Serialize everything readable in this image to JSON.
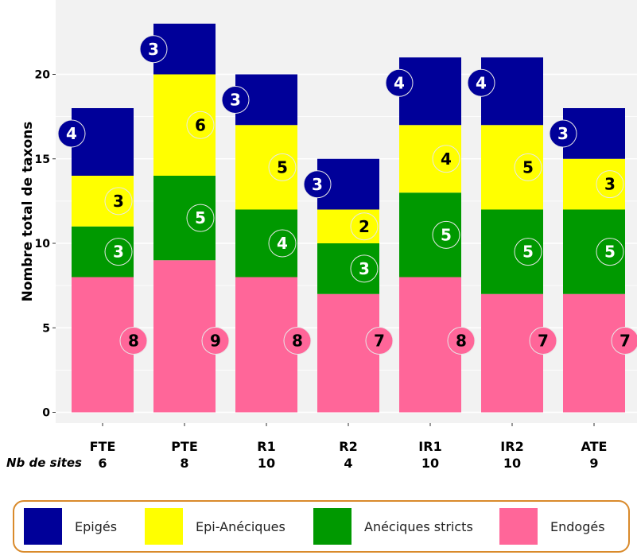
{
  "chart_data": {
    "type": "bar",
    "stacked": true,
    "title": "",
    "xlabel": "",
    "ylabel": "Nombre total de taxons",
    "ylim": [
      0,
      24
    ],
    "yticks": [
      0,
      5,
      10,
      15,
      20
    ],
    "grid": "horizontal",
    "categories": [
      "FTE",
      "PTE",
      "R1",
      "R2",
      "IR1",
      "IR2",
      "ATE"
    ],
    "sites_label": "Nb de sites",
    "sites": [
      "6",
      "8",
      "10",
      "4",
      "10",
      "10",
      "9"
    ],
    "series": [
      {
        "name": "Endogés",
        "color": "#ff6699",
        "label_color": "#000000",
        "values": [
          8,
          9,
          8,
          7,
          8,
          7,
          7
        ]
      },
      {
        "name": "Anéciques stricts",
        "color": "#009900",
        "label_color": "#ffffff",
        "values": [
          3,
          5,
          4,
          3,
          5,
          5,
          5
        ]
      },
      {
        "name": "Epi-Anéciques",
        "color": "#ffff00",
        "label_color": "#000000",
        "values": [
          3,
          6,
          5,
          2,
          4,
          5,
          3
        ]
      },
      {
        "name": "Epigés",
        "color": "#000099",
        "label_color": "#ffffff",
        "values": [
          4,
          3,
          3,
          3,
          4,
          4,
          3
        ]
      }
    ],
    "legend": {
      "placement": "bottom",
      "order": [
        "Epigés",
        "Epi-Anéciques",
        "Anéciques stricts",
        "Endogés"
      ]
    }
  }
}
